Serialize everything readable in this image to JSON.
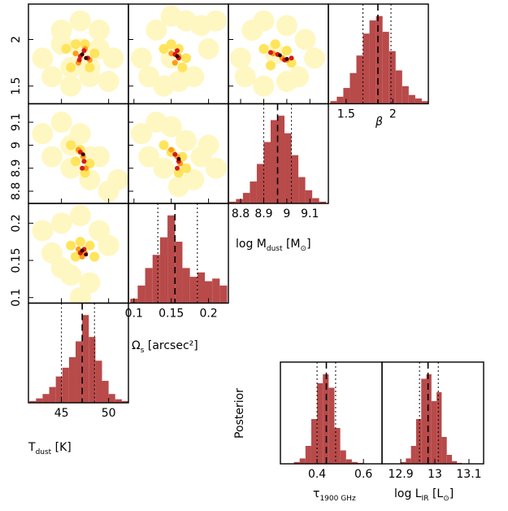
{
  "chart_data": {
    "type": "corner",
    "hist_color": "#b84a4a",
    "side_label": "Posterior",
    "params": [
      {
        "label": [
          {
            "text": "T"
          },
          {
            "text": "dust",
            "sub": true
          },
          {
            "text": " [K]"
          }
        ],
        "lim": [
          41.5,
          52.1
        ],
        "ticks": [
          45,
          50
        ],
        "hist": {
          "bins": [
            41.6,
            42.3,
            43.0,
            43.7,
            44.4,
            45.1,
            45.8,
            46.5,
            47.2,
            47.9,
            48.6,
            49.3,
            50.0,
            50.7,
            51.4,
            52.1
          ],
          "counts": [
            2,
            5,
            10,
            18,
            30,
            40,
            52,
            70,
            100,
            75,
            48,
            25,
            10,
            4,
            2
          ],
          "median": 47.2,
          "lower": 45.0,
          "upper": 48.5
        }
      },
      {
        "label": [
          {
            "text": "Ω"
          },
          {
            "text": "s",
            "sub": true
          },
          {
            "text": " [arcsec²]"
          }
        ],
        "lim": [
          0.0926,
          0.2266
        ],
        "ticks": [
          0.1,
          0.15,
          0.2
        ],
        "hist": {
          "bins": [
            0.095,
            0.105,
            0.115,
            0.125,
            0.135,
            0.145,
            0.155,
            0.165,
            0.175,
            0.185,
            0.195,
            0.205,
            0.215,
            0.225
          ],
          "counts": [
            5,
            20,
            40,
            55,
            75,
            100,
            70,
            40,
            30,
            35,
            25,
            28,
            20
          ],
          "median": 0.155,
          "lower": 0.132,
          "upper": 0.185
        }
      },
      {
        "label": [
          {
            "text": "log M"
          },
          {
            "text": "dust",
            "sub": true
          },
          {
            "text": " [M"
          },
          {
            "text": "⊙",
            "sub": true
          },
          {
            "text": "]"
          }
        ],
        "lim": [
          8.747,
          9.18
        ],
        "ticks": [
          8.8,
          8.9,
          9,
          9.1
        ],
        "hist": {
          "bins": [
            8.75,
            8.78,
            8.81,
            8.84,
            8.87,
            8.9,
            8.93,
            8.96,
            8.99,
            9.02,
            9.05,
            9.08,
            9.11,
            9.14,
            9.17
          ],
          "counts": [
            2,
            5,
            12,
            25,
            45,
            70,
            95,
            100,
            80,
            55,
            30,
            15,
            6,
            2
          ],
          "median": 8.96,
          "lower": 8.9,
          "upper": 9.02
        }
      },
      {
        "label": [
          {
            "text": "β"
          }
        ],
        "lim": [
          1.31,
          2.38
        ],
        "ticks": [
          1.5,
          2
        ],
        "hist": {
          "bins": [
            1.33,
            1.4,
            1.47,
            1.54,
            1.61,
            1.68,
            1.75,
            1.82,
            1.89,
            1.96,
            2.03,
            2.1,
            2.17,
            2.24,
            2.31,
            2.38
          ],
          "counts": [
            3,
            8,
            18,
            35,
            55,
            80,
            95,
            100,
            82,
            60,
            38,
            20,
            10,
            6,
            3
          ],
          "median": 1.84,
          "lower": 1.68,
          "upper": 1.98
        }
      }
    ],
    "level_colors": [
      "#fff7c2",
      "#ffe45c",
      "#ff9a1a",
      "#d7191c",
      "#3a0000"
    ],
    "scatter": [
      {
        "levels": [
          {
            "x": [
              43,
              45,
              47,
              49,
              50.5,
              44,
              46,
              48,
              50,
              45,
              47,
              49,
              46,
              48
            ],
            "y": [
              1.8,
              2.1,
              2.2,
              2.1,
              1.8,
              1.6,
              1.5,
              1.6,
              1.55,
              1.95,
              1.9,
              1.9,
              1.7,
              1.7
            ]
          },
          {
            "x": [
              45.5,
              46.5,
              47.5,
              48.5,
              46,
              48
            ],
            "y": [
              1.9,
              1.95,
              1.95,
              1.85,
              1.7,
              1.7
            ]
          },
          {
            "x": [
              46.5,
              47.5,
              48,
              46.8
            ],
            "y": [
              1.85,
              1.9,
              1.78,
              1.75
            ]
          },
          {
            "x": [
              47,
              47.4,
              47.8,
              46.9
            ],
            "y": [
              1.82,
              1.88,
              1.8,
              1.78
            ]
          },
          {
            "x": [
              47.2,
              47.6
            ],
            "y": [
              1.84,
              1.8
            ]
          }
        ]
      },
      {
        "levels": [
          {
            "x": [
              0.11,
              0.13,
              0.15,
              0.17,
              0.19,
              0.21,
              0.12,
              0.14,
              0.16,
              0.18,
              0.2,
              0.15
            ],
            "y": [
              1.8,
              2.1,
              2.25,
              2.2,
              2.15,
              2.2,
              1.6,
              1.5,
              1.55,
              1.6,
              1.9,
              1.8
            ]
          },
          {
            "x": [
              0.14,
              0.15,
              0.16,
              0.17,
              0.165
            ],
            "y": [
              1.9,
              1.95,
              1.9,
              1.8,
              1.7
            ]
          },
          {
            "x": [
              0.15,
              0.16,
              0.155
            ],
            "y": [
              1.85,
              1.82,
              1.75
            ]
          },
          {
            "x": [
              0.155,
              0.16,
              0.158
            ],
            "y": [
              1.84,
              1.8,
              1.88
            ]
          },
          {
            "x": [
              0.158
            ],
            "y": [
              1.82
            ]
          }
        ]
      },
      {
        "levels": [
          {
            "x": [
              8.8,
              8.85,
              8.9,
              9.0,
              9.08,
              9.12,
              8.82,
              8.9,
              9.0,
              9.05,
              8.95
            ],
            "y": [
              1.8,
              2.1,
              2.2,
              2.15,
              2.0,
              1.8,
              1.6,
              1.5,
              1.55,
              1.6,
              1.85
            ]
          },
          {
            "x": [
              8.9,
              8.95,
              9.0,
              9.02,
              8.93
            ],
            "y": [
              1.9,
              1.95,
              1.88,
              1.75,
              1.72
            ]
          },
          {
            "x": [
              8.94,
              8.98,
              9.0
            ],
            "y": [
              1.85,
              1.8,
              1.78
            ]
          },
          {
            "x": [
              8.96,
              8.99,
              9.02,
              8.93
            ],
            "y": [
              1.84,
              1.78,
              1.8,
              1.86
            ]
          },
          {
            "x": [
              8.97,
              9.0
            ],
            "y": [
              1.83,
              1.79
            ]
          }
        ]
      },
      {
        "levels": [
          {
            "x": [
              43,
              45,
              47,
              49,
              51,
              44,
              46,
              48,
              50,
              46,
              48
            ],
            "y": [
              9.05,
              9.1,
              9.05,
              8.95,
              8.85,
              8.95,
              8.9,
              8.85,
              8.8,
              9.0,
              8.95
            ]
          },
          {
            "x": [
              46,
              47,
              48,
              47.5,
              46.5
            ],
            "y": [
              9.0,
              8.98,
              8.92,
              8.88,
              8.93
            ]
          },
          {
            "x": [
              46.8,
              47.3,
              47.6
            ],
            "y": [
              8.98,
              8.95,
              8.9
            ]
          },
          {
            "x": [
              47,
              47.4,
              47.2
            ],
            "y": [
              8.97,
              8.93,
              8.9
            ]
          },
          {
            "x": [
              47.3
            ],
            "y": [
              8.96
            ]
          }
        ]
      },
      {
        "levels": [
          {
            "x": [
              0.11,
              0.13,
              0.15,
              0.17,
              0.19,
              0.21,
              0.12,
              0.14,
              0.16,
              0.18,
              0.2
            ],
            "y": [
              9.05,
              9.1,
              9.08,
              9.02,
              8.95,
              8.9,
              8.95,
              8.9,
              8.82,
              8.85,
              9.0
            ]
          },
          {
            "x": [
              0.14,
              0.15,
              0.165,
              0.17,
              0.16
            ],
            "y": [
              9.0,
              8.97,
              8.95,
              8.9,
              8.88
            ]
          },
          {
            "x": [
              0.15,
              0.158,
              0.162
            ],
            "y": [
              8.98,
              8.95,
              8.92
            ]
          },
          {
            "x": [
              0.155,
              0.16,
              0.158
            ],
            "y": [
              8.96,
              8.93,
              8.9
            ]
          },
          {
            "x": [
              0.16
            ],
            "y": [
              8.94
            ]
          }
        ]
      },
      {
        "levels": [
          {
            "x": [
              43,
              45,
              47,
              49,
              50,
              44,
              46,
              48,
              47,
              45
            ],
            "y": [
              0.19,
              0.2,
              0.21,
              0.19,
              0.17,
              0.16,
              0.13,
              0.12,
              0.1,
              0.14
            ]
          },
          {
            "x": [
              46,
              47,
              48,
              48.5,
              46.5
            ],
            "y": [
              0.17,
              0.175,
              0.17,
              0.155,
              0.155
            ]
          },
          {
            "x": [
              46.8,
              47.5,
              47.2
            ],
            "y": [
              0.165,
              0.16,
              0.155
            ]
          },
          {
            "x": [
              47,
              47.4
            ],
            "y": [
              0.16,
              0.165
            ]
          },
          {
            "x": [
              47.2,
              47.6
            ],
            "y": [
              0.163,
              0.158
            ]
          }
        ]
      }
    ],
    "extra": [
      {
        "label": [
          {
            "text": "τ"
          },
          {
            "text": "1900 GHz",
            "sub": true
          }
        ],
        "lim": [
          0.242,
          0.68
        ],
        "ticks": [
          0.4,
          0.6
        ],
        "hist": {
          "bins": [
            0.3,
            0.325,
            0.35,
            0.375,
            0.4,
            0.425,
            0.45,
            0.475,
            0.5,
            0.525,
            0.55,
            0.575,
            0.6
          ],
          "counts": [
            2,
            6,
            20,
            50,
            90,
            100,
            85,
            40,
            15,
            5,
            2,
            1
          ],
          "median": 0.44,
          "lower": 0.4,
          "upper": 0.48
        }
      },
      {
        "label": [
          {
            "text": "log L"
          },
          {
            "text": "IR",
            "sub": true
          },
          {
            "text": " [L"
          },
          {
            "text": "⊙",
            "sub": true
          },
          {
            "text": "]"
          }
        ],
        "lim": [
          12.845,
          13.143
        ],
        "ticks": [
          12.9,
          13,
          13.1
        ],
        "hist": {
          "bins": [
            12.9,
            12.915,
            12.93,
            12.945,
            12.96,
            12.975,
            12.99,
            13.005,
            13.02,
            13.035,
            13.05,
            13.065,
            13.08
          ],
          "counts": [
            2,
            6,
            20,
            50,
            95,
            100,
            70,
            80,
            30,
            10,
            3,
            1
          ],
          "median": 12.98,
          "lower": 12.955,
          "upper": 13.01
        }
      }
    ]
  }
}
